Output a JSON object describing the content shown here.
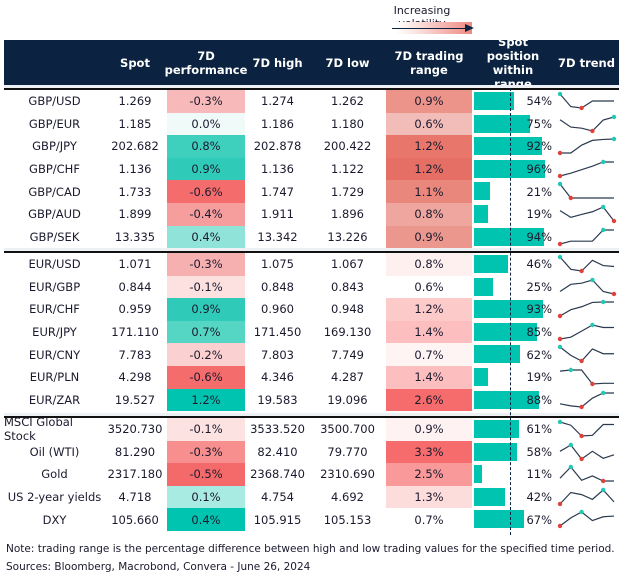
{
  "legend": {
    "label": "Increasing volatility"
  },
  "headers": {
    "spot": "Spot",
    "perf": "7D performance",
    "high": "7D high",
    "low": "7D low",
    "range": "7D trading range",
    "position": "Spot position within range",
    "trend": "7D trend"
  },
  "colors": {
    "header_bg": "#0b2341",
    "bar": "#00c4b0",
    "max_marker": "#1fc9b5",
    "min_marker": "#e0413a",
    "line": "#2b3a4f"
  },
  "groups": [
    {
      "rows": [
        {
          "name": "GBP/USD",
          "spot": "1.269",
          "perf": "-0.3%",
          "perf_color": "#f7b9b9",
          "high": "1.274",
          "low": "1.262",
          "range": "0.9%",
          "range_color": "#ec938a",
          "position_pct": 54,
          "position": "54%",
          "trend": [
            1,
            0.1,
            0,
            0.5,
            0.5,
            0.5
          ]
        },
        {
          "name": "GBP/EUR",
          "spot": "1.185",
          "perf": "0.0%",
          "perf_color": "#f0faf8",
          "high": "1.186",
          "low": "1.180",
          "range": "0.6%",
          "range_color": "#f2bdb8",
          "position_pct": 75,
          "position": "75%",
          "trend": [
            0.8,
            0.28,
            0.2,
            0,
            0.78,
            1
          ]
        },
        {
          "name": "GBP/JPY",
          "spot": "202.682",
          "perf": "0.8%",
          "perf_color": "#3fd0bd",
          "high": "202.878",
          "low": "200.422",
          "range": "1.2%",
          "range_color": "#e8766b",
          "position_pct": 92,
          "position": "92%",
          "trend": [
            0,
            0,
            0.56,
            0.9,
            0.97,
            1
          ]
        },
        {
          "name": "GBP/CHF",
          "spot": "1.136",
          "perf": "0.9%",
          "perf_color": "#2fcbb8",
          "high": "1.136",
          "low": "1.122",
          "range": "1.2%",
          "range_color": "#e66f65",
          "position_pct": 96,
          "position": "96%",
          "trend": [
            0,
            0.2,
            0.45,
            0.7,
            1,
            1
          ]
        },
        {
          "name": "GBP/CAD",
          "spot": "1.733",
          "perf": "-0.6%",
          "perf_color": "#f46c6c",
          "high": "1.747",
          "low": "1.729",
          "range": "1.1%",
          "range_color": "#ea877d",
          "position_pct": 21,
          "position": "21%",
          "trend": [
            1,
            0,
            0,
            0,
            0,
            0
          ]
        },
        {
          "name": "GBP/AUD",
          "spot": "1.899",
          "perf": "-0.4%",
          "perf_color": "#f69e9e",
          "high": "1.911",
          "low": "1.896",
          "range": "0.8%",
          "range_color": "#efa69f",
          "position_pct": 19,
          "position": "19%",
          "trend": [
            0.74,
            0.26,
            0.47,
            0.66,
            1,
            0
          ]
        },
        {
          "name": "GBP/SEK",
          "spot": "13.335",
          "perf": "0.4%",
          "perf_color": "#8fe3d8",
          "high": "13.342",
          "low": "13.226",
          "range": "0.9%",
          "range_color": "#eb978e",
          "position_pct": 94,
          "position": "94%",
          "trend": [
            0,
            0.2,
            0.2,
            0.2,
            1,
            1
          ]
        }
      ]
    },
    {
      "rows": [
        {
          "name": "EUR/USD",
          "spot": "1.071",
          "perf": "-0.3%",
          "perf_color": "#f7b0b0",
          "high": "1.075",
          "low": "1.067",
          "range": "0.8%",
          "range_color": "#fff0f0",
          "position_pct": 46,
          "position": "46%",
          "trend": [
            1,
            0.12,
            0,
            0.76,
            0.39,
            0.32
          ]
        },
        {
          "name": "EUR/GBP",
          "spot": "0.844",
          "perf": "-0.1%",
          "perf_color": "#fde0e0",
          "high": "0.848",
          "low": "0.843",
          "range": "0.6%",
          "range_color": "#ffffff",
          "position_pct": 25,
          "position": "25%",
          "trend": [
            0.18,
            0.69,
            0.77,
            1,
            0.18,
            0
          ]
        },
        {
          "name": "EUR/CHF",
          "spot": "0.959",
          "perf": "0.9%",
          "perf_color": "#2fcbb8",
          "high": "0.960",
          "low": "0.948",
          "range": "1.2%",
          "range_color": "#fdcaca",
          "position_pct": 93,
          "position": "93%",
          "trend": [
            0,
            0.45,
            0.66,
            0.97,
            1,
            1
          ]
        },
        {
          "name": "EUR/JPY",
          "spot": "171.110",
          "perf": "0.7%",
          "perf_color": "#55d5c4",
          "high": "171.450",
          "low": "169.130",
          "range": "1.4%",
          "range_color": "#fcbebe",
          "position_pct": 85,
          "position": "85%",
          "trend": [
            0,
            0.13,
            0.56,
            1,
            0.82,
            0.82
          ]
        },
        {
          "name": "EUR/CNY",
          "spot": "7.783",
          "perf": "-0.2%",
          "perf_color": "#fbd0d0",
          "high": "7.803",
          "low": "7.749",
          "range": "0.7%",
          "range_color": "#fff4f4",
          "position_pct": 62,
          "position": "62%",
          "trend": [
            1,
            0.4,
            0,
            0.86,
            0.52,
            0.52
          ]
        },
        {
          "name": "EUR/PLN",
          "spot": "4.298",
          "perf": "-0.6%",
          "perf_color": "#f46c6c",
          "high": "4.346",
          "low": "4.287",
          "range": "1.4%",
          "range_color": "#fcbebe",
          "position_pct": 19,
          "position": "19%",
          "trend": [
            0.92,
            1,
            1,
            0,
            0.05,
            0.05
          ]
        },
        {
          "name": "EUR/ZAR",
          "spot": "19.527",
          "perf": "1.2%",
          "perf_color": "#00c4b0",
          "high": "19.583",
          "low": "19.096",
          "range": "2.6%",
          "range_color": "#f66c6c",
          "position_pct": 88,
          "position": "88%",
          "trend": [
            0.23,
            0.08,
            0,
            0.63,
            1,
            1
          ]
        }
      ]
    },
    {
      "rows": [
        {
          "name": "MSCI Global Stock",
          "spot": "3520.730",
          "perf": "-0.1%",
          "perf_color": "#fde2e2",
          "high": "3533.520",
          "low": "3500.700",
          "range": "0.9%",
          "range_color": "#fff2f2",
          "position_pct": 61,
          "position": "61%",
          "trend": [
            1,
            0.77,
            0,
            0.05,
            0.82,
            0.82
          ]
        },
        {
          "name": "Oil (WTI)",
          "spot": "81.290",
          "perf": "-0.3%",
          "perf_color": "#f88f8f",
          "high": "82.410",
          "low": "79.770",
          "range": "3.3%",
          "range_color": "#f66c6c",
          "position_pct": 58,
          "position": "58%",
          "trend": [
            0.55,
            1,
            0,
            0.55,
            0.05,
            0.3
          ]
        },
        {
          "name": "Gold",
          "spot": "2317.180",
          "perf": "-0.5%",
          "perf_color": "#f46a6a",
          "high": "2368.740",
          "low": "2310.690",
          "range": "2.5%",
          "range_color": "#f99999",
          "position_pct": 11,
          "position": "11%",
          "trend": [
            0.2,
            1,
            0.05,
            0.36,
            0,
            0
          ]
        },
        {
          "name": "US 2-year yields",
          "spot": "4.718",
          "perf": "0.1%",
          "perf_color": "#a8ebe3",
          "high": "4.754",
          "low": "4.692",
          "range": "1.3%",
          "range_color": "#fddcdc",
          "position_pct": 42,
          "position": "42%",
          "trend": [
            0,
            0.82,
            0.67,
            0.33,
            1,
            0.15
          ]
        },
        {
          "name": "DXY",
          "spot": "105.660",
          "perf": "0.4%",
          "perf_color": "#00c4b0",
          "high": "105.915",
          "low": "105.153",
          "range": "0.7%",
          "range_color": "#ffffff",
          "position_pct": 67,
          "position": "67%",
          "trend": [
            0,
            0.58,
            1,
            0.39,
            0.66,
            0.71
          ]
        }
      ]
    }
  ],
  "footer": {
    "note": "Note: trading range is the percentage difference between high and low trading values for the specified time period.",
    "sources": "Sources: Bloomberg, Macrobond, Convera - June 26, 2024"
  }
}
